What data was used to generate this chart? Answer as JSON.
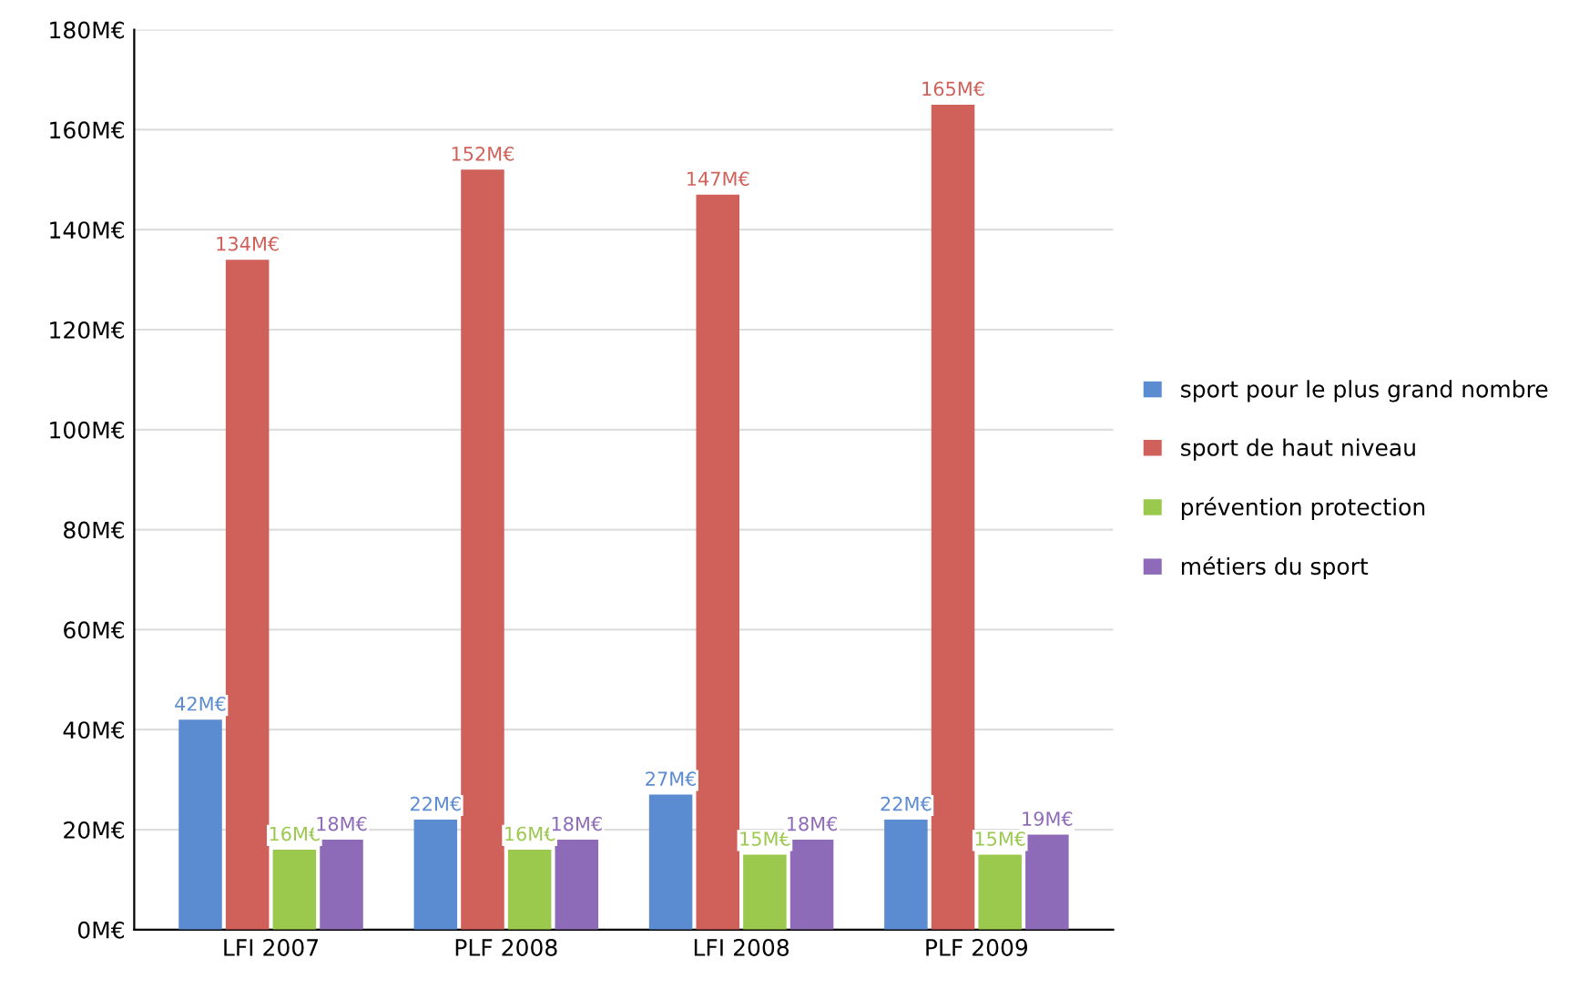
{
  "chart_data": {
    "type": "bar",
    "categories": [
      "LFI 2007",
      "PLF 2008",
      "LFI 2008",
      "PLF 2009"
    ],
    "series": [
      {
        "name": "sport pour le plus grand nombre",
        "color": "#5b8bd0",
        "values": [
          42,
          22,
          27,
          22
        ],
        "value_labels": [
          "42M€",
          "22M€",
          "27M€",
          "22M€"
        ]
      },
      {
        "name": "sport de haut niveau",
        "color": "#d0605a",
        "values": [
          134,
          152,
          147,
          165
        ],
        "value_labels": [
          "134M€",
          "152M€",
          "147M€",
          "165M€"
        ]
      },
      {
        "name": "prévention protection",
        "color": "#9bc94e",
        "values": [
          16,
          16,
          15,
          15
        ],
        "value_labels": [
          "16M€",
          "16M€",
          "15M€",
          "15M€"
        ]
      },
      {
        "name": "métiers du sport",
        "color": "#8e6bb8",
        "values": [
          18,
          18,
          18,
          19
        ],
        "value_labels": [
          "18M€",
          "18M€",
          "18M€",
          "19M€"
        ]
      }
    ],
    "ylim": [
      0,
      180
    ],
    "yticks": [
      {
        "value": 0,
        "label": "0M€"
      },
      {
        "value": 20,
        "label": "20M€"
      },
      {
        "value": 40,
        "label": "40M€"
      },
      {
        "value": 60,
        "label": "60M€"
      },
      {
        "value": 80,
        "label": "80M€"
      },
      {
        "value": 100,
        "label": "100M€"
      },
      {
        "value": 120,
        "label": "120M€"
      },
      {
        "value": 140,
        "label": "140M€"
      },
      {
        "value": 160,
        "label": "160M€"
      },
      {
        "value": 180,
        "label": "180M€"
      }
    ],
    "grid": "y",
    "legend": "right"
  }
}
